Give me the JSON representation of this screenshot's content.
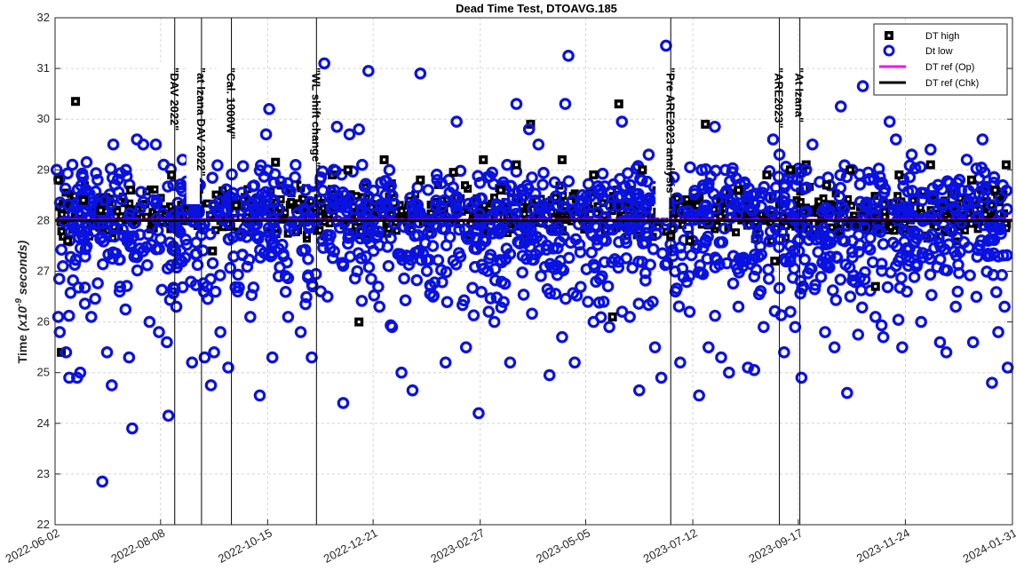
{
  "chart_data": {
    "type": "scatter",
    "title": "Dead Time Test, DTOAVG.185",
    "ylabel_main": "Time",
    "ylabel_unit_prefix": "(x10",
    "ylabel_unit_exp": "-9",
    "ylabel_unit_suffix": " seconds)",
    "xlabel": "",
    "x_axis": "date",
    "xlim": [
      "2022-06-02",
      "2024-01-31"
    ],
    "ylim": [
      22,
      32
    ],
    "xticks": [
      "2022-06-02",
      "2022-08-08",
      "2022-10-15",
      "2022-12-21",
      "2023-02-27",
      "2023-05-05",
      "2023-07-12",
      "2023-09-17",
      "2023-11-24",
      "2024-01-31"
    ],
    "yticks": [
      22,
      23,
      24,
      25,
      26,
      27,
      28,
      29,
      30,
      31,
      32
    ],
    "grid": true,
    "legend_position": "top-right",
    "series": [
      {
        "name": "DT high",
        "marker": "square",
        "color": "#000000",
        "points": [
          [
            "2022-06-04",
            28.8
          ],
          [
            "2022-06-06",
            25.4
          ],
          [
            "2022-06-15",
            30.35
          ],
          [
            "2022-06-10",
            27.6
          ],
          [
            "2022-06-20",
            28.4
          ],
          [
            "2022-07-01",
            28.2
          ],
          [
            "2022-07-20",
            28.6
          ],
          [
            "2022-08-15",
            28.9
          ],
          [
            "2022-09-10",
            27.4
          ],
          [
            "2022-09-25",
            28.3
          ],
          [
            "2022-10-20",
            29.15
          ],
          [
            "2022-11-05",
            28.7
          ],
          [
            "2022-11-25",
            28.9
          ],
          [
            "2022-12-05",
            29.0
          ],
          [
            "2022-12-12",
            26.0
          ],
          [
            "2022-12-28",
            29.2
          ],
          [
            "2023-01-20",
            28.8
          ],
          [
            "2023-02-10",
            28.95
          ],
          [
            "2023-03-01",
            29.2
          ],
          [
            "2023-03-12",
            28.6
          ],
          [
            "2023-03-22",
            29.1
          ],
          [
            "2023-03-31",
            29.9
          ],
          [
            "2023-04-20",
            29.2
          ],
          [
            "2023-05-10",
            28.9
          ],
          [
            "2023-05-22",
            26.1
          ],
          [
            "2023-05-26",
            30.3
          ],
          [
            "2023-06-10",
            29.0
          ],
          [
            "2023-06-28",
            27.7
          ],
          [
            "2023-07-10",
            27.6
          ],
          [
            "2023-07-20",
            29.9
          ],
          [
            "2023-08-10",
            28.6
          ],
          [
            "2023-08-28",
            28.9
          ],
          [
            "2023-09-02",
            27.2
          ],
          [
            "2023-09-12",
            29.0
          ],
          [
            "2023-09-22",
            29.1
          ],
          [
            "2023-10-05",
            28.7
          ],
          [
            "2023-10-20",
            29.0
          ],
          [
            "2023-11-05",
            26.7
          ],
          [
            "2023-11-20",
            28.9
          ],
          [
            "2023-12-10",
            29.1
          ],
          [
            "2024-01-05",
            28.8
          ],
          [
            "2024-01-20",
            28.6
          ],
          [
            "2024-01-27",
            29.1
          ]
        ]
      },
      {
        "name": "Dt low",
        "marker": "circle",
        "color": "#0a12e0",
        "points": [
          [
            "2022-06-03",
            29.0
          ],
          [
            "2022-06-04",
            26.1
          ],
          [
            "2022-06-05",
            25.8
          ],
          [
            "2022-06-07",
            27.1
          ],
          [
            "2022-06-09",
            25.4
          ],
          [
            "2022-06-11",
            24.9
          ],
          [
            "2022-06-13",
            29.1
          ],
          [
            "2022-06-16",
            24.9
          ],
          [
            "2022-06-18",
            25.0
          ],
          [
            "2022-06-19",
            28.9
          ],
          [
            "2022-06-22",
            29.15
          ],
          [
            "2022-06-25",
            26.1
          ],
          [
            "2022-06-29",
            28.8
          ],
          [
            "2022-07-02",
            22.85
          ],
          [
            "2022-07-05",
            25.4
          ],
          [
            "2022-07-08",
            24.75
          ],
          [
            "2022-07-09",
            29.5
          ],
          [
            "2022-07-13",
            26.6
          ],
          [
            "2022-07-17",
            29.0
          ],
          [
            "2022-07-19",
            25.3
          ],
          [
            "2022-07-21",
            23.9
          ],
          [
            "2022-07-24",
            29.6
          ],
          [
            "2022-07-28",
            29.5
          ],
          [
            "2022-08-01",
            26.0
          ],
          [
            "2022-08-05",
            29.5
          ],
          [
            "2022-08-07",
            25.8
          ],
          [
            "2022-08-10",
            29.1
          ],
          [
            "2022-08-12",
            25.6
          ],
          [
            "2022-08-13",
            24.15
          ],
          [
            "2022-08-18",
            26.3
          ],
          [
            "2022-08-22",
            29.2
          ],
          [
            "2022-08-28",
            25.2
          ],
          [
            "2022-09-02",
            28.7
          ],
          [
            "2022-09-05",
            25.3
          ],
          [
            "2022-09-09",
            24.75
          ],
          [
            "2022-09-11",
            25.4
          ],
          [
            "2022-09-15",
            25.8
          ],
          [
            "2022-09-20",
            25.1
          ],
          [
            "2022-09-26",
            26.6
          ],
          [
            "2022-10-04",
            26.1
          ],
          [
            "2022-10-10",
            24.55
          ],
          [
            "2022-10-14",
            29.7
          ],
          [
            "2022-10-16",
            30.2
          ],
          [
            "2022-10-18",
            25.3
          ],
          [
            "2022-10-22",
            26.9
          ],
          [
            "2022-10-28",
            26.1
          ],
          [
            "2022-11-05",
            25.8
          ],
          [
            "2022-11-08",
            28.6
          ],
          [
            "2022-11-12",
            25.3
          ],
          [
            "2022-11-20",
            31.1
          ],
          [
            "2022-11-22",
            26.5
          ],
          [
            "2022-11-26",
            29.0
          ],
          [
            "2022-11-28",
            29.85
          ],
          [
            "2022-12-02",
            24.4
          ],
          [
            "2022-12-06",
            29.7
          ],
          [
            "2022-12-12",
            29.8
          ],
          [
            "2022-12-18",
            30.95
          ],
          [
            "2022-12-25",
            26.3
          ],
          [
            "2023-01-02",
            25.9
          ],
          [
            "2023-01-08",
            25.0
          ],
          [
            "2023-01-15",
            24.65
          ],
          [
            "2023-01-20",
            30.9
          ],
          [
            "2023-01-28",
            26.5
          ],
          [
            "2023-02-05",
            25.2
          ],
          [
            "2023-02-12",
            29.95
          ],
          [
            "2023-02-18",
            25.5
          ],
          [
            "2023-02-26",
            24.2
          ],
          [
            "2023-03-08",
            26.0
          ],
          [
            "2023-03-18",
            25.2
          ],
          [
            "2023-03-22",
            30.3
          ],
          [
            "2023-03-30",
            29.8
          ],
          [
            "2023-04-05",
            29.5
          ],
          [
            "2023-04-12",
            24.95
          ],
          [
            "2023-04-20",
            25.7
          ],
          [
            "2023-04-22",
            30.3
          ],
          [
            "2023-04-24",
            31.25
          ],
          [
            "2023-04-28",
            25.2
          ],
          [
            "2023-05-10",
            26.0
          ],
          [
            "2023-05-20",
            25.9
          ],
          [
            "2023-05-28",
            29.95
          ],
          [
            "2023-06-02",
            26.1
          ],
          [
            "2023-06-08",
            24.65
          ],
          [
            "2023-06-14",
            29.3
          ],
          [
            "2023-06-18",
            25.5
          ],
          [
            "2023-06-22",
            24.9
          ],
          [
            "2023-06-25",
            31.45
          ],
          [
            "2023-07-01",
            26.6
          ],
          [
            "2023-07-04",
            25.2
          ],
          [
            "2023-07-10",
            26.2
          ],
          [
            "2023-07-16",
            24.55
          ],
          [
            "2023-07-22",
            25.5
          ],
          [
            "2023-07-26",
            29.85
          ],
          [
            "2023-07-30",
            25.3
          ],
          [
            "2023-08-04",
            25.0
          ],
          [
            "2023-08-10",
            26.3
          ],
          [
            "2023-08-16",
            25.1
          ],
          [
            "2023-08-20",
            25.05
          ],
          [
            "2023-08-26",
            25.9
          ],
          [
            "2023-09-01",
            29.6
          ],
          [
            "2023-09-05",
            29.3
          ],
          [
            "2023-09-08",
            25.4
          ],
          [
            "2023-09-12",
            26.2
          ],
          [
            "2023-09-15",
            25.9
          ],
          [
            "2023-09-19",
            24.9
          ],
          [
            "2023-09-22",
            29.0
          ],
          [
            "2023-09-26",
            29.5
          ],
          [
            "2023-10-04",
            25.8
          ],
          [
            "2023-10-10",
            25.5
          ],
          [
            "2023-10-14",
            30.25
          ],
          [
            "2023-10-18",
            24.6
          ],
          [
            "2023-10-20",
            26.5
          ],
          [
            "2023-10-25",
            25.75
          ],
          [
            "2023-10-28",
            30.65
          ],
          [
            "2023-11-05",
            26.1
          ],
          [
            "2023-11-10",
            25.7
          ],
          [
            "2023-11-14",
            29.95
          ],
          [
            "2023-11-18",
            29.6
          ],
          [
            "2023-11-22",
            25.5
          ],
          [
            "2023-11-28",
            29.3
          ],
          [
            "2023-12-04",
            26.0
          ],
          [
            "2023-12-10",
            29.4
          ],
          [
            "2023-12-16",
            25.6
          ],
          [
            "2023-12-20",
            25.4
          ],
          [
            "2023-12-26",
            26.3
          ],
          [
            "2024-01-02",
            29.2
          ],
          [
            "2024-01-06",
            25.6
          ],
          [
            "2024-01-12",
            29.6
          ],
          [
            "2024-01-18",
            24.8
          ],
          [
            "2024-01-22",
            25.8
          ],
          [
            "2024-01-26",
            26.3
          ],
          [
            "2024-01-28",
            25.1
          ]
        ]
      },
      {
        "name": "DT ref (Op)",
        "type": "line",
        "color": "#ff00ff",
        "y": 28.0
      },
      {
        "name": "DT ref (Chk)",
        "type": "line",
        "color": "#000000",
        "y": 28.0
      }
    ],
    "annotations": [
      {
        "date": "2022-08-17",
        "text": "\"DAV 2022\""
      },
      {
        "date": "2022-09-03",
        "text": "\"at Izana  DAV 2022\""
      },
      {
        "date": "2022-09-22",
        "text": "\"Cal. 1000W\""
      },
      {
        "date": "2022-11-15",
        "text": "\"WL shift change\""
      },
      {
        "date": "2023-06-28",
        "text": "\"Pre ARE2023 analysis\""
      },
      {
        "date": "2023-09-05",
        "text": "\"ARE2023\""
      },
      {
        "date": "2023-09-18",
        "text": "\"At Izana\""
      }
    ]
  }
}
